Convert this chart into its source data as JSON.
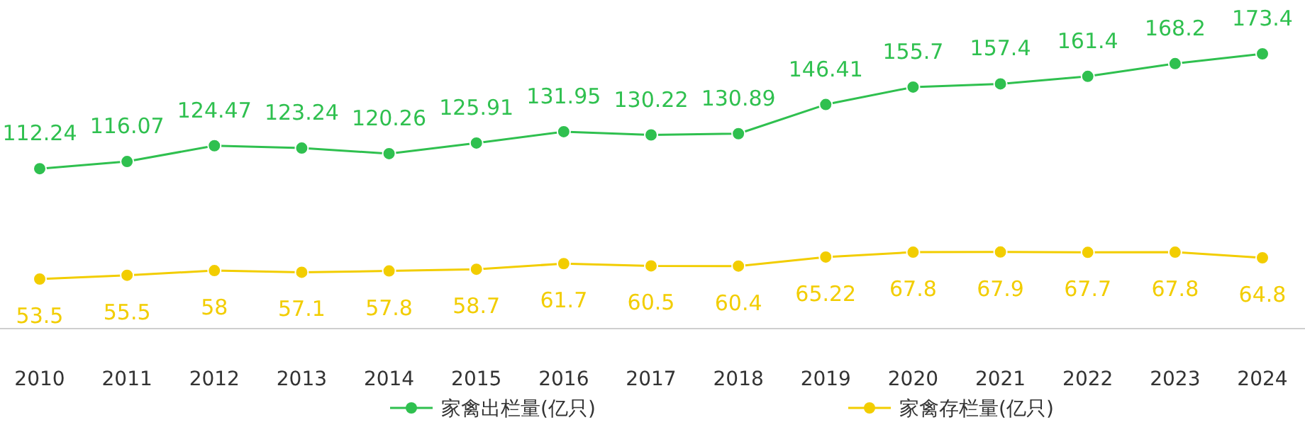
{
  "chart_data": {
    "type": "line",
    "categories": [
      "2010",
      "2011",
      "2012",
      "2013",
      "2014",
      "2015",
      "2016",
      "2017",
      "2018",
      "2019",
      "2020",
      "2021",
      "2022",
      "2023",
      "2024"
    ],
    "series": [
      {
        "name": "家禽出栏量(亿只)",
        "color": "#2fc04f",
        "values": [
          112.24,
          116.07,
          124.47,
          123.24,
          120.26,
          125.91,
          131.95,
          130.22,
          130.89,
          146.41,
          155.7,
          157.4,
          161.4,
          168.2,
          173.4
        ]
      },
      {
        "name": "家禽存栏量(亿只)",
        "color": "#f2cd00",
        "values": [
          53.5,
          55.5,
          58,
          57.1,
          57.8,
          58.7,
          61.7,
          60.5,
          60.4,
          65.22,
          67.8,
          67.9,
          67.7,
          67.8,
          64.8
        ]
      }
    ],
    "data_labels": true,
    "marker": "circle",
    "legend": "bottom"
  }
}
